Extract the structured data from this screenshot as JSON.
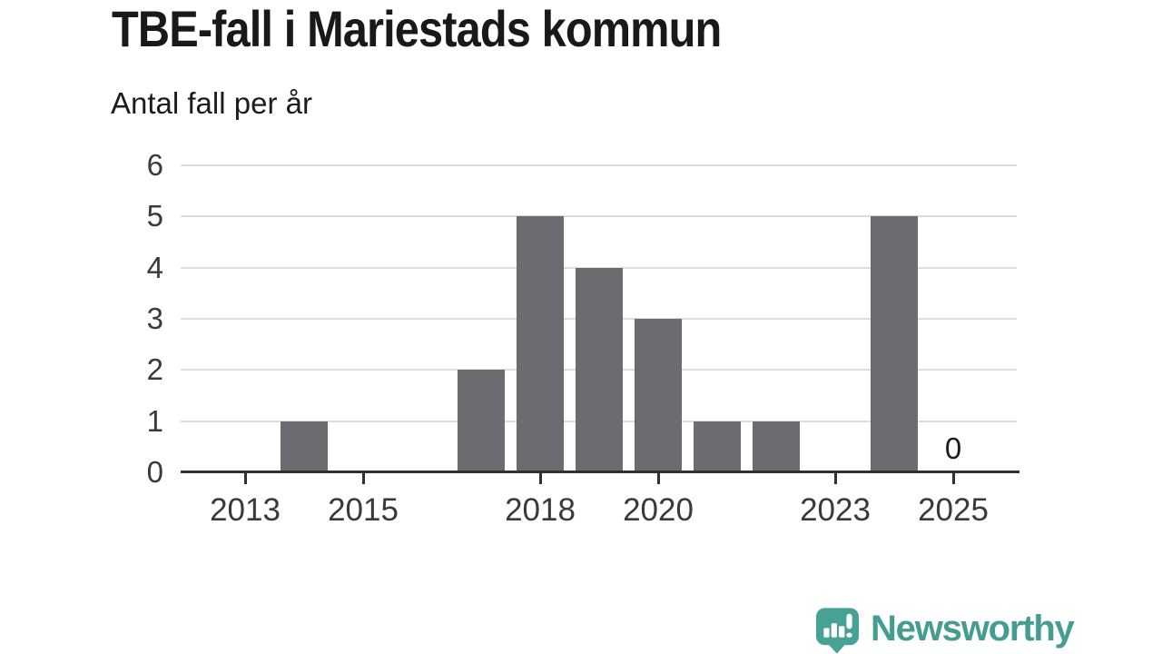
{
  "header": {
    "title": "TBE-fall i Mariestads kommun",
    "subtitle": "Antal fall per år"
  },
  "chart_data": {
    "type": "bar",
    "title": "TBE-fall i Mariestads kommun",
    "ylabel": "Antal fall per år",
    "categories": [
      2013,
      2014,
      2015,
      2016,
      2017,
      2018,
      2019,
      2020,
      2021,
      2022,
      2023,
      2024,
      2025
    ],
    "values": [
      0,
      1,
      0,
      0,
      2,
      5,
      4,
      3,
      1,
      1,
      0,
      5,
      0
    ],
    "ylim": [
      0,
      6
    ],
    "yticks": [
      0,
      1,
      2,
      3,
      4,
      5,
      6
    ],
    "xticks": [
      2013,
      2015,
      2018,
      2020,
      2023,
      2025
    ],
    "grid": true,
    "legend": "none",
    "bar_color": "#6c6c70",
    "grid_color": "#dcdcdc",
    "axis_color": "#303030",
    "label_color": "#3a3a3a",
    "annotations": [
      {
        "category": 2025,
        "text": "0"
      }
    ]
  },
  "footer": {
    "brand": "Newsworthy",
    "logo_icon": "newsworthy-speech-bubble-chart-icon",
    "brand_color": "#459d92",
    "icon_color": "#47a296"
  }
}
